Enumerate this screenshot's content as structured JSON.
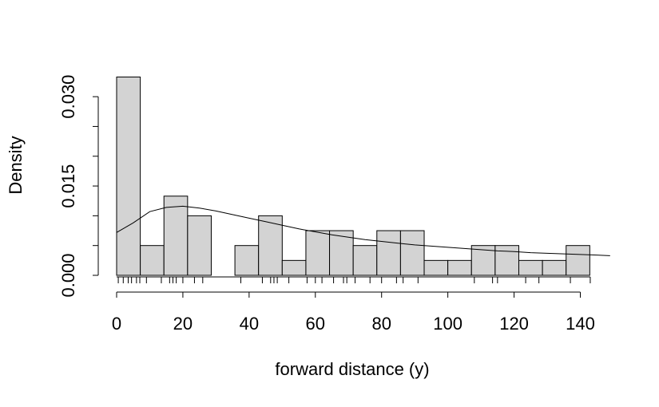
{
  "chart_data": {
    "type": "bar",
    "title": "",
    "xlabel": "forward distance (y)",
    "ylabel": "Density",
    "bin_width": 7.1429,
    "bin_edges": [
      0,
      7.1429,
      14.2857,
      21.4286,
      28.5714,
      35.7143,
      42.8571,
      50,
      57.1429,
      64.2857,
      71.4286,
      78.5714,
      85.7143,
      92.8571,
      100,
      107.1429,
      114.2857,
      121.4286,
      128.5714,
      135.7143,
      142.8571
    ],
    "values": [
      0.0333,
      0.005,
      0.0133,
      0.01,
      0.0,
      0.005,
      0.01,
      0.0025,
      0.0075,
      0.0075,
      0.005,
      0.0075,
      0.0075,
      0.0025,
      0.0025,
      0.005,
      0.005,
      0.0025,
      0.0025,
      0.005
    ],
    "fitted_curve": {
      "x": [
        0,
        5,
        10,
        15,
        20,
        25,
        30,
        35,
        40,
        45,
        50,
        55,
        60,
        65,
        70,
        75,
        80,
        85,
        90,
        95,
        100,
        105,
        110,
        115,
        120,
        125,
        130,
        135,
        140,
        145,
        149
      ],
      "y": [
        0.0072,
        0.0088,
        0.0107,
        0.0114,
        0.0116,
        0.0113,
        0.0108,
        0.0102,
        0.0096,
        0.009,
        0.0084,
        0.0078,
        0.0073,
        0.0068,
        0.0064,
        0.006,
        0.0057,
        0.0054,
        0.0051,
        0.0049,
        0.0047,
        0.0045,
        0.0043,
        0.0041,
        0.004,
        0.0038,
        0.0037,
        0.0036,
        0.0035,
        0.0034,
        0.0033
      ]
    },
    "rug": [
      0.5,
      2,
      3.5,
      4.5,
      6,
      7,
      9,
      13.5,
      16,
      17,
      18,
      20,
      23.5,
      26,
      37.5,
      44,
      46.5,
      47.5,
      48.5,
      52,
      57.5,
      60,
      62,
      65.5,
      68.5,
      69.5,
      72,
      76.5,
      80,
      84.5,
      86.5,
      91,
      108,
      113.5,
      115,
      123.5,
      127.5,
      137,
      143
    ],
    "xlim": [
      0,
      149
    ],
    "ylim": [
      0,
      0.033
    ],
    "x_ticks": [
      0,
      20,
      40,
      60,
      80,
      100,
      120,
      140
    ],
    "y_ticks": [
      0.0,
      0.005,
      0.01,
      0.015,
      0.02,
      0.025,
      0.03
    ],
    "y_tick_labels": [
      {
        "value": 0.0,
        "label": "0.000"
      },
      {
        "value": 0.015,
        "label": "0.015"
      },
      {
        "value": 0.03,
        "label": "0.030"
      }
    ],
    "grid": false,
    "colors": {
      "bar_fill": "#d3d3d3",
      "bar_stroke": "#000000",
      "line": "#000000"
    }
  }
}
